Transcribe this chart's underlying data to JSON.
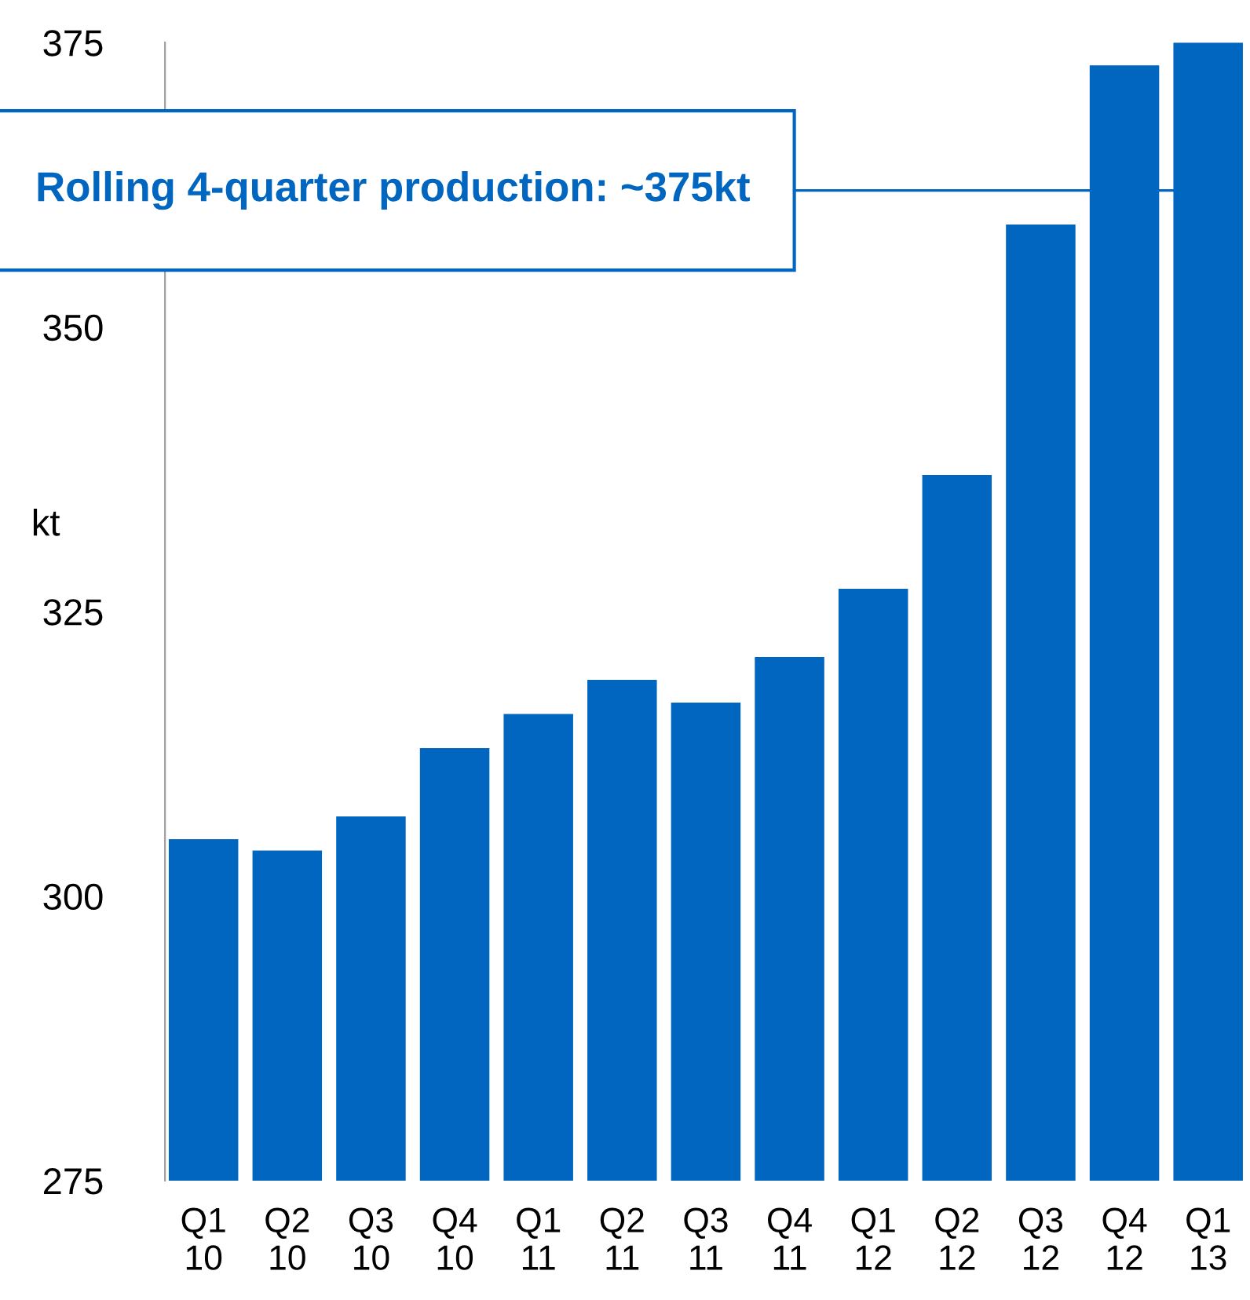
{
  "chart_data": {
    "type": "bar",
    "ylabel": "kt",
    "categories": [
      "Q1\n10",
      "Q2\n10",
      "Q3\n10",
      "Q4\n10",
      "Q1\n11",
      "Q2\n11",
      "Q3\n11",
      "Q4\n11",
      "Q1\n12",
      "Q2\n12",
      "Q3\n12",
      "Q4\n12",
      "Q1\n13"
    ],
    "values": [
      305,
      304,
      307,
      313,
      316,
      319,
      317,
      321,
      327,
      337,
      359,
      373,
      375
    ],
    "color": "#0066bf",
    "ylim": [
      275,
      375
    ],
    "yticks": [
      275,
      300,
      325,
      350,
      375
    ],
    "grid": false,
    "legend": false,
    "annotations": [
      "Rolling 4-quarter production: ~375kt"
    ]
  }
}
